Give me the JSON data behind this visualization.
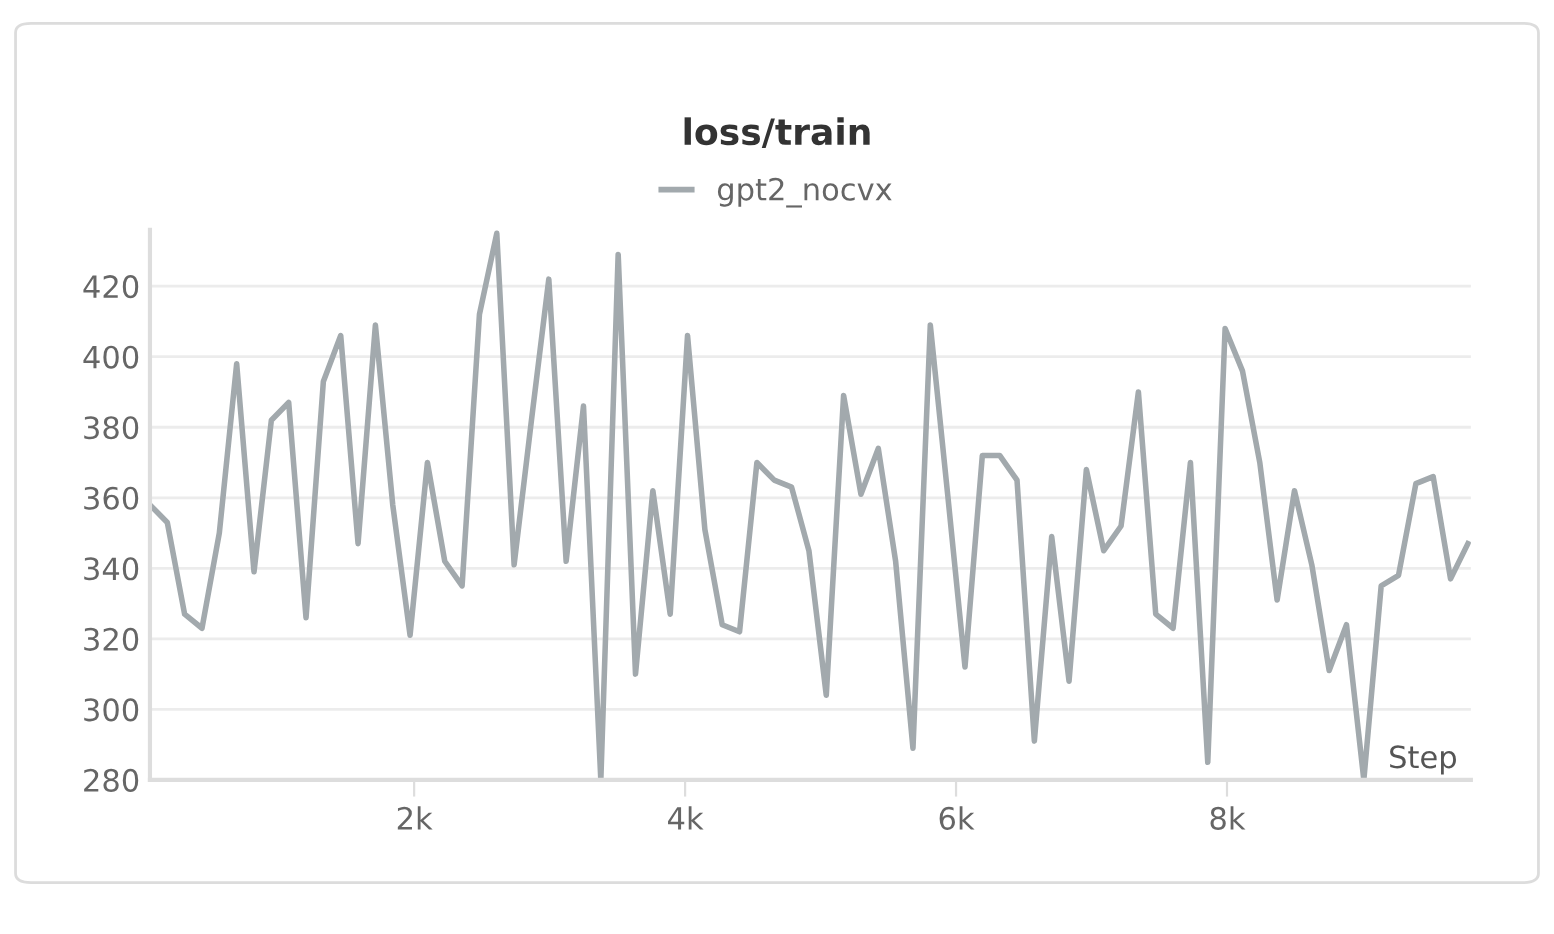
{
  "chart_data": {
    "type": "line",
    "title": "loss/train",
    "xlabel": "Step",
    "x": [
      50,
      178,
      306,
      434,
      562,
      690,
      818,
      946,
      1074,
      1202,
      1330,
      1458,
      1586,
      1714,
      1842,
      1970,
      2098,
      2226,
      2354,
      2482,
      2610,
      2738,
      2866,
      2994,
      3122,
      3250,
      3378,
      3506,
      3634,
      3762,
      3890,
      4018,
      4146,
      4274,
      4402,
      4530,
      4658,
      4786,
      4914,
      5042,
      5170,
      5298,
      5426,
      5554,
      5682,
      5810,
      5938,
      6066,
      6194,
      6322,
      6450,
      6578,
      6706,
      6834,
      6962,
      7090,
      7218,
      7346,
      7474,
      7602,
      7730,
      7858,
      7986,
      8114,
      8242,
      8370,
      8498,
      8626,
      8754,
      8882,
      9010,
      9138,
      9266,
      9394,
      9522,
      9650,
      9778
    ],
    "series": [
      {
        "name": "gpt2_nocvx",
        "color": "#a2a9ad",
        "values": [
          358,
          353,
          327,
          323,
          350,
          398,
          339,
          382,
          387,
          326,
          393,
          406,
          347,
          409,
          358,
          321,
          370,
          342,
          335,
          412,
          435,
          341,
          382,
          422,
          342,
          386,
          280,
          429,
          310,
          362,
          327,
          406,
          351,
          324,
          322,
          370,
          365,
          363,
          345,
          304,
          389,
          361,
          374,
          342,
          289,
          409,
          361,
          312,
          372,
          372,
          365,
          291,
          349,
          308,
          368,
          345,
          352,
          390,
          327,
          323,
          370,
          285,
          408,
          396,
          370,
          331,
          362,
          341,
          311,
          324,
          280,
          335,
          338,
          364,
          366,
          337,
          347
        ]
      }
    ],
    "xlim": [
      50,
      9800
    ],
    "ylim": [
      280,
      436
    ],
    "xticks": [
      {
        "value": 2000,
        "label": "2k"
      },
      {
        "value": 4000,
        "label": "4k"
      },
      {
        "value": 6000,
        "label": "6k"
      },
      {
        "value": 8000,
        "label": "8k"
      }
    ],
    "yticks": [
      280,
      300,
      320,
      340,
      360,
      380,
      400,
      420
    ],
    "grid": "y",
    "legend": "top",
    "marker": "none",
    "line_style": "solid"
  }
}
